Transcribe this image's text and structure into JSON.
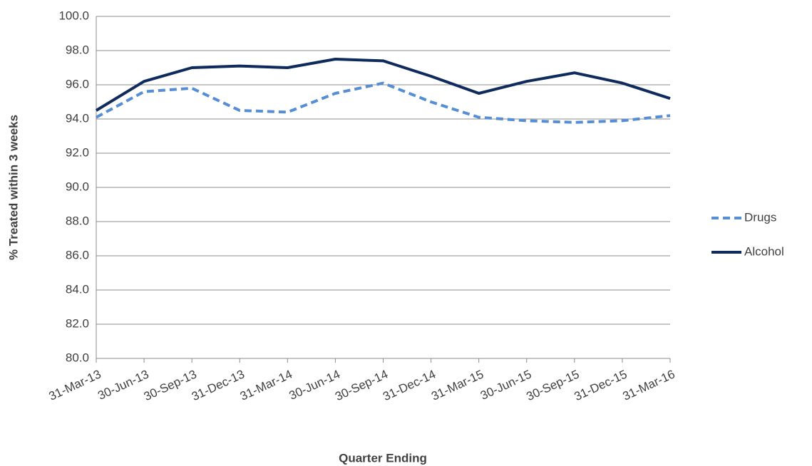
{
  "chart_data": {
    "type": "line",
    "x_label": "Quarter Ending",
    "y_label": "% Treated within 3 weeks",
    "categories": [
      "31-Mar-13",
      "30-Jun-13",
      "30-Sep-13",
      "31-Dec-13",
      "31-Mar-14",
      "30-Jun-14",
      "30-Sep-14",
      "31-Dec-14",
      "31-Mar-15",
      "30-Jun-15",
      "30-Sep-15",
      "31-Dec-15",
      "31-Mar-16"
    ],
    "series": [
      {
        "name": "Drugs",
        "color": "#558ed5",
        "dash": true,
        "values": [
          94.1,
          95.6,
          95.8,
          94.5,
          94.4,
          95.5,
          96.1,
          95.0,
          94.1,
          93.9,
          93.8,
          93.9,
          94.2
        ]
      },
      {
        "name": "Alcohol",
        "color": "#0f2a5c",
        "dash": false,
        "values": [
          94.5,
          96.2,
          97.0,
          97.1,
          97.0,
          97.5,
          97.4,
          96.5,
          95.5,
          96.2,
          96.7,
          96.1,
          95.2
        ]
      }
    ],
    "ylim": [
      80,
      100
    ],
    "yticks": [
      {
        "value": 80,
        "label": "80.0"
      },
      {
        "value": 82,
        "label": "82.0"
      },
      {
        "value": 84,
        "label": "84.0"
      },
      {
        "value": 86,
        "label": "86.0"
      },
      {
        "value": 88,
        "label": "88.0"
      },
      {
        "value": 90,
        "label": "90.0"
      },
      {
        "value": 92,
        "label": "92.0"
      },
      {
        "value": 94,
        "label": "94.0"
      },
      {
        "value": 96,
        "label": "96.0"
      },
      {
        "value": 98,
        "label": "98.0"
      },
      {
        "value": 100,
        "label": "100.0"
      }
    ],
    "grid": true,
    "legend": "right"
  }
}
